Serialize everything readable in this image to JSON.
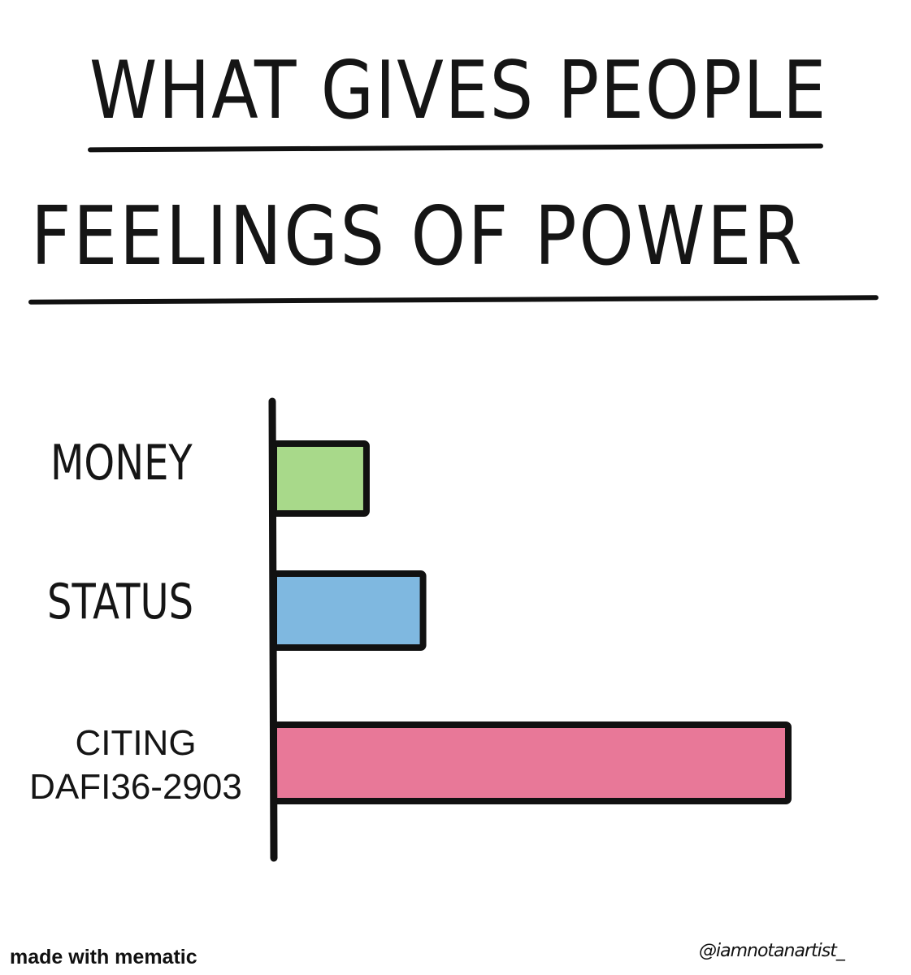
{
  "chart_data": {
    "type": "bar",
    "orientation": "horizontal",
    "title": [
      "WHAT GIVES PEOPLE",
      "FEELINGS OF POWER"
    ],
    "categories": [
      "MONEY",
      "STATUS",
      "CITING DAFI36-2903"
    ],
    "category_lines": [
      [
        "MONEY"
      ],
      [
        "STATUS"
      ],
      [
        "CITING",
        "DAFI36-2903"
      ]
    ],
    "values": [
      18,
      29,
      100
    ],
    "xlim": [
      0,
      100
    ],
    "colors": [
      "#a8d98a",
      "#7fb8e0",
      "#e87898"
    ],
    "xlabel": "",
    "ylabel": "",
    "grid": false,
    "legend": "none"
  },
  "footer": {
    "watermark": "made with mematic",
    "credit": "@iamnotanartist_"
  }
}
